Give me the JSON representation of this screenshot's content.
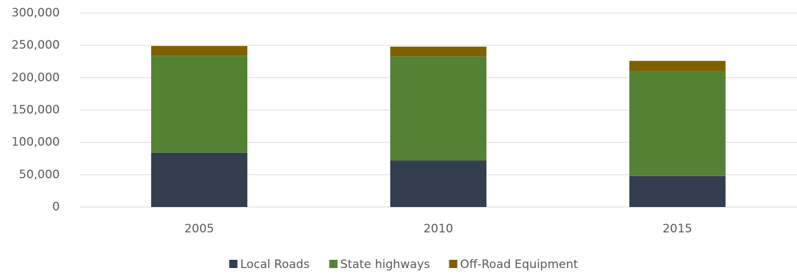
{
  "chart_data": {
    "type": "stacked_bar",
    "categories": [
      "2005",
      "2010",
      "2015"
    ],
    "series": [
      {
        "name": "Local Roads",
        "color": "#333f50",
        "values": [
          84000,
          72000,
          48000
        ]
      },
      {
        "name": "State highways",
        "color": "#548235",
        "values": [
          150000,
          161000,
          162000
        ]
      },
      {
        "name": "Off-Road Equipment",
        "color": "#7f6000",
        "values": [
          15000,
          15000,
          16000
        ]
      }
    ],
    "ylim": [
      0,
      300000
    ],
    "yticks": [
      0,
      {
        "value": 50000,
        "label": "50,000"
      },
      {
        "value": 100000,
        "label": "100,000"
      },
      {
        "value": 150000,
        "label": "150,000"
      },
      {
        "value": 200000,
        "label": "200,000"
      },
      {
        "value": 250000,
        "label": "250,000"
      },
      {
        "value": 300000,
        "label": "300,000"
      }
    ],
    "grid": true,
    "legend": "bottom"
  }
}
